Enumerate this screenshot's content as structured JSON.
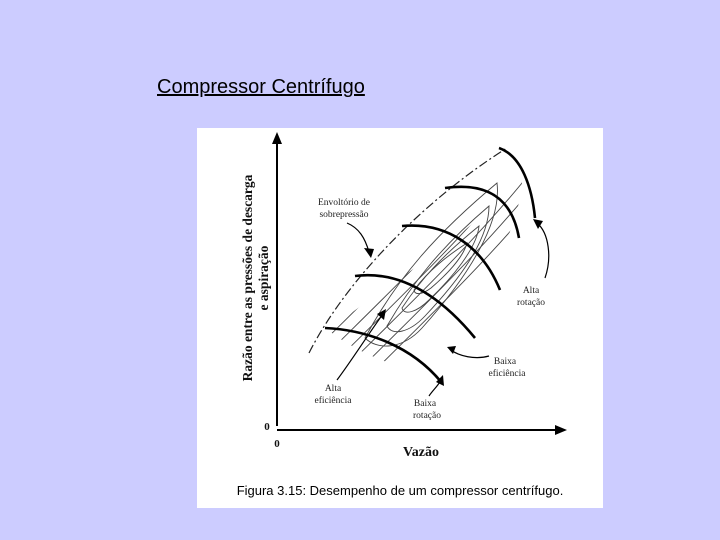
{
  "slide": {
    "title": "Compressor Centrífugo"
  },
  "figure": {
    "y_axis_label_line1": "Razão entre as pressões de descarga",
    "y_axis_label_line2": "e aspiração",
    "x_axis_label": "Vazão",
    "origin_y": "0",
    "origin_x": "0",
    "annotations": {
      "envelope_line1": "Envoltório de",
      "envelope_line2": "sobrepressão",
      "high_rotation_line1": "Alta",
      "high_rotation_line2": "rotação",
      "low_efficiency_line1": "Baixa",
      "low_efficiency_line2": "eficiência",
      "high_efficiency_line1": "Alta",
      "high_efficiency_line2": "eficiência",
      "low_rotation_line1": "Baixa",
      "low_rotation_line2": "rotação"
    },
    "caption": "Figura 3.15: Desempenho de um compressor centrífugo."
  }
}
